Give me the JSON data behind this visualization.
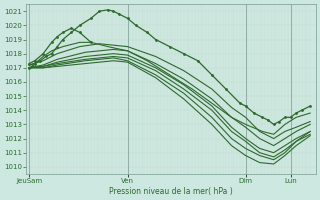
{
  "xlabel": "Pression niveau de la mer( hPa )",
  "background_color": "#cce8e0",
  "line_color": "#2d6a2d",
  "ylim": [
    1009.5,
    1021.5
  ],
  "yticks": [
    1010,
    1011,
    1012,
    1013,
    1014,
    1015,
    1016,
    1017,
    1018,
    1019,
    1020,
    1021
  ],
  "xtick_labels": [
    "JeuSam",
    "Ven",
    "Dim",
    "Lun"
  ],
  "xtick_positions": [
    0.0,
    0.35,
    0.77,
    0.93
  ],
  "figsize": [
    3.2,
    2.0
  ],
  "dpi": 100,
  "vlines": [
    0.0,
    0.35,
    0.77,
    0.93
  ],
  "lines": [
    {
      "x": [
        0.0,
        0.01,
        0.02,
        0.04,
        0.06,
        0.08,
        0.1,
        0.12,
        0.15,
        0.18,
        0.22,
        0.25,
        0.28,
        0.3,
        0.32,
        0.35,
        0.38,
        0.42,
        0.45,
        0.5,
        0.55,
        0.6,
        0.65,
        0.7,
        0.75,
        0.77,
        0.8,
        0.83,
        0.85,
        0.87,
        0.89,
        0.91,
        0.93,
        0.95,
        0.97,
        1.0
      ],
      "y": [
        1017.0,
        1017.1,
        1017.3,
        1017.5,
        1017.8,
        1018.0,
        1018.5,
        1019.0,
        1019.5,
        1020.0,
        1020.5,
        1021.0,
        1021.1,
        1021.0,
        1020.8,
        1020.5,
        1020.0,
        1019.5,
        1019.0,
        1018.5,
        1018.0,
        1017.5,
        1016.5,
        1015.5,
        1014.5,
        1014.3,
        1013.8,
        1013.5,
        1013.3,
        1013.0,
        1013.2,
        1013.5,
        1013.5,
        1013.8,
        1014.0,
        1014.3
      ],
      "marker": true,
      "lw": 0.9
    },
    {
      "x": [
        0.0,
        0.02,
        0.05,
        0.08,
        0.12,
        0.18,
        0.22,
        0.28,
        0.35,
        0.42,
        0.5,
        0.58,
        0.65,
        0.72,
        0.77,
        0.83,
        0.87,
        0.91,
        0.95,
        1.0
      ],
      "y": [
        1017.2,
        1017.3,
        1017.8,
        1018.2,
        1018.5,
        1018.8,
        1018.8,
        1018.5,
        1018.2,
        1017.5,
        1016.5,
        1015.5,
        1014.5,
        1013.5,
        1013.0,
        1012.5,
        1012.3,
        1013.0,
        1013.5,
        1013.8
      ],
      "marker": false,
      "lw": 0.8
    },
    {
      "x": [
        0.0,
        0.05,
        0.1,
        0.18,
        0.25,
        0.35,
        0.45,
        0.55,
        0.65,
        0.72,
        0.77,
        0.82,
        0.87,
        0.91,
        0.95,
        1.0
      ],
      "y": [
        1017.2,
        1017.5,
        1018.0,
        1018.5,
        1018.7,
        1018.5,
        1017.8,
        1016.8,
        1015.5,
        1014.2,
        1013.5,
        1012.5,
        1012.0,
        1012.5,
        1012.8,
        1013.2
      ],
      "marker": false,
      "lw": 0.8
    },
    {
      "x": [
        0.0,
        0.05,
        0.1,
        0.2,
        0.3,
        0.35,
        0.45,
        0.55,
        0.65,
        0.72,
        0.77,
        0.82,
        0.87,
        0.91,
        0.95,
        1.0
      ],
      "y": [
        1017.0,
        1017.2,
        1017.6,
        1018.1,
        1018.3,
        1018.2,
        1017.3,
        1016.2,
        1014.8,
        1013.5,
        1012.8,
        1012.0,
        1011.5,
        1012.0,
        1012.5,
        1013.0
      ],
      "marker": false,
      "lw": 0.8
    },
    {
      "x": [
        0.0,
        0.05,
        0.1,
        0.2,
        0.3,
        0.35,
        0.45,
        0.55,
        0.65,
        0.72,
        0.77,
        0.82,
        0.87,
        0.91,
        0.95,
        1.0
      ],
      "y": [
        1017.0,
        1017.1,
        1017.4,
        1017.8,
        1018.0,
        1017.9,
        1017.0,
        1015.8,
        1014.3,
        1012.8,
        1012.0,
        1011.3,
        1011.0,
        1011.5,
        1012.0,
        1012.5
      ],
      "marker": false,
      "lw": 0.8
    },
    {
      "x": [
        0.0,
        0.05,
        0.1,
        0.2,
        0.3,
        0.35,
        0.45,
        0.55,
        0.65,
        0.72,
        0.77,
        0.82,
        0.87,
        0.91,
        0.95,
        1.0
      ],
      "y": [
        1017.0,
        1017.1,
        1017.3,
        1017.6,
        1017.8,
        1017.7,
        1016.8,
        1015.5,
        1014.0,
        1012.5,
        1011.8,
        1011.0,
        1010.7,
        1011.2,
        1011.8,
        1012.3
      ],
      "marker": false,
      "lw": 0.8
    },
    {
      "x": [
        0.0,
        0.05,
        0.1,
        0.2,
        0.3,
        0.35,
        0.45,
        0.55,
        0.65,
        0.72,
        0.77,
        0.82,
        0.87,
        0.91,
        0.95,
        1.0
      ],
      "y": [
        1017.0,
        1017.0,
        1017.2,
        1017.5,
        1017.7,
        1017.5,
        1016.5,
        1015.2,
        1013.5,
        1012.0,
        1011.3,
        1010.8,
        1010.5,
        1011.0,
        1011.8,
        1012.5
      ],
      "marker": false,
      "lw": 0.8
    },
    {
      "x": [
        0.0,
        0.05,
        0.1,
        0.2,
        0.3,
        0.35,
        0.45,
        0.55,
        0.65,
        0.72,
        0.77,
        0.82,
        0.87,
        0.91,
        0.95,
        1.0
      ],
      "y": [
        1017.0,
        1017.0,
        1017.1,
        1017.3,
        1017.5,
        1017.4,
        1016.3,
        1014.8,
        1013.0,
        1011.5,
        1010.8,
        1010.3,
        1010.2,
        1010.8,
        1011.5,
        1012.2
      ],
      "marker": false,
      "lw": 0.8
    },
    {
      "x": [
        0.0,
        0.02,
        0.05,
        0.08,
        0.1,
        0.12,
        0.15,
        0.18,
        0.22
      ],
      "y": [
        1017.3,
        1017.5,
        1018.0,
        1018.8,
        1019.2,
        1019.5,
        1019.8,
        1019.5,
        1018.8
      ],
      "marker": true,
      "lw": 0.9
    }
  ]
}
